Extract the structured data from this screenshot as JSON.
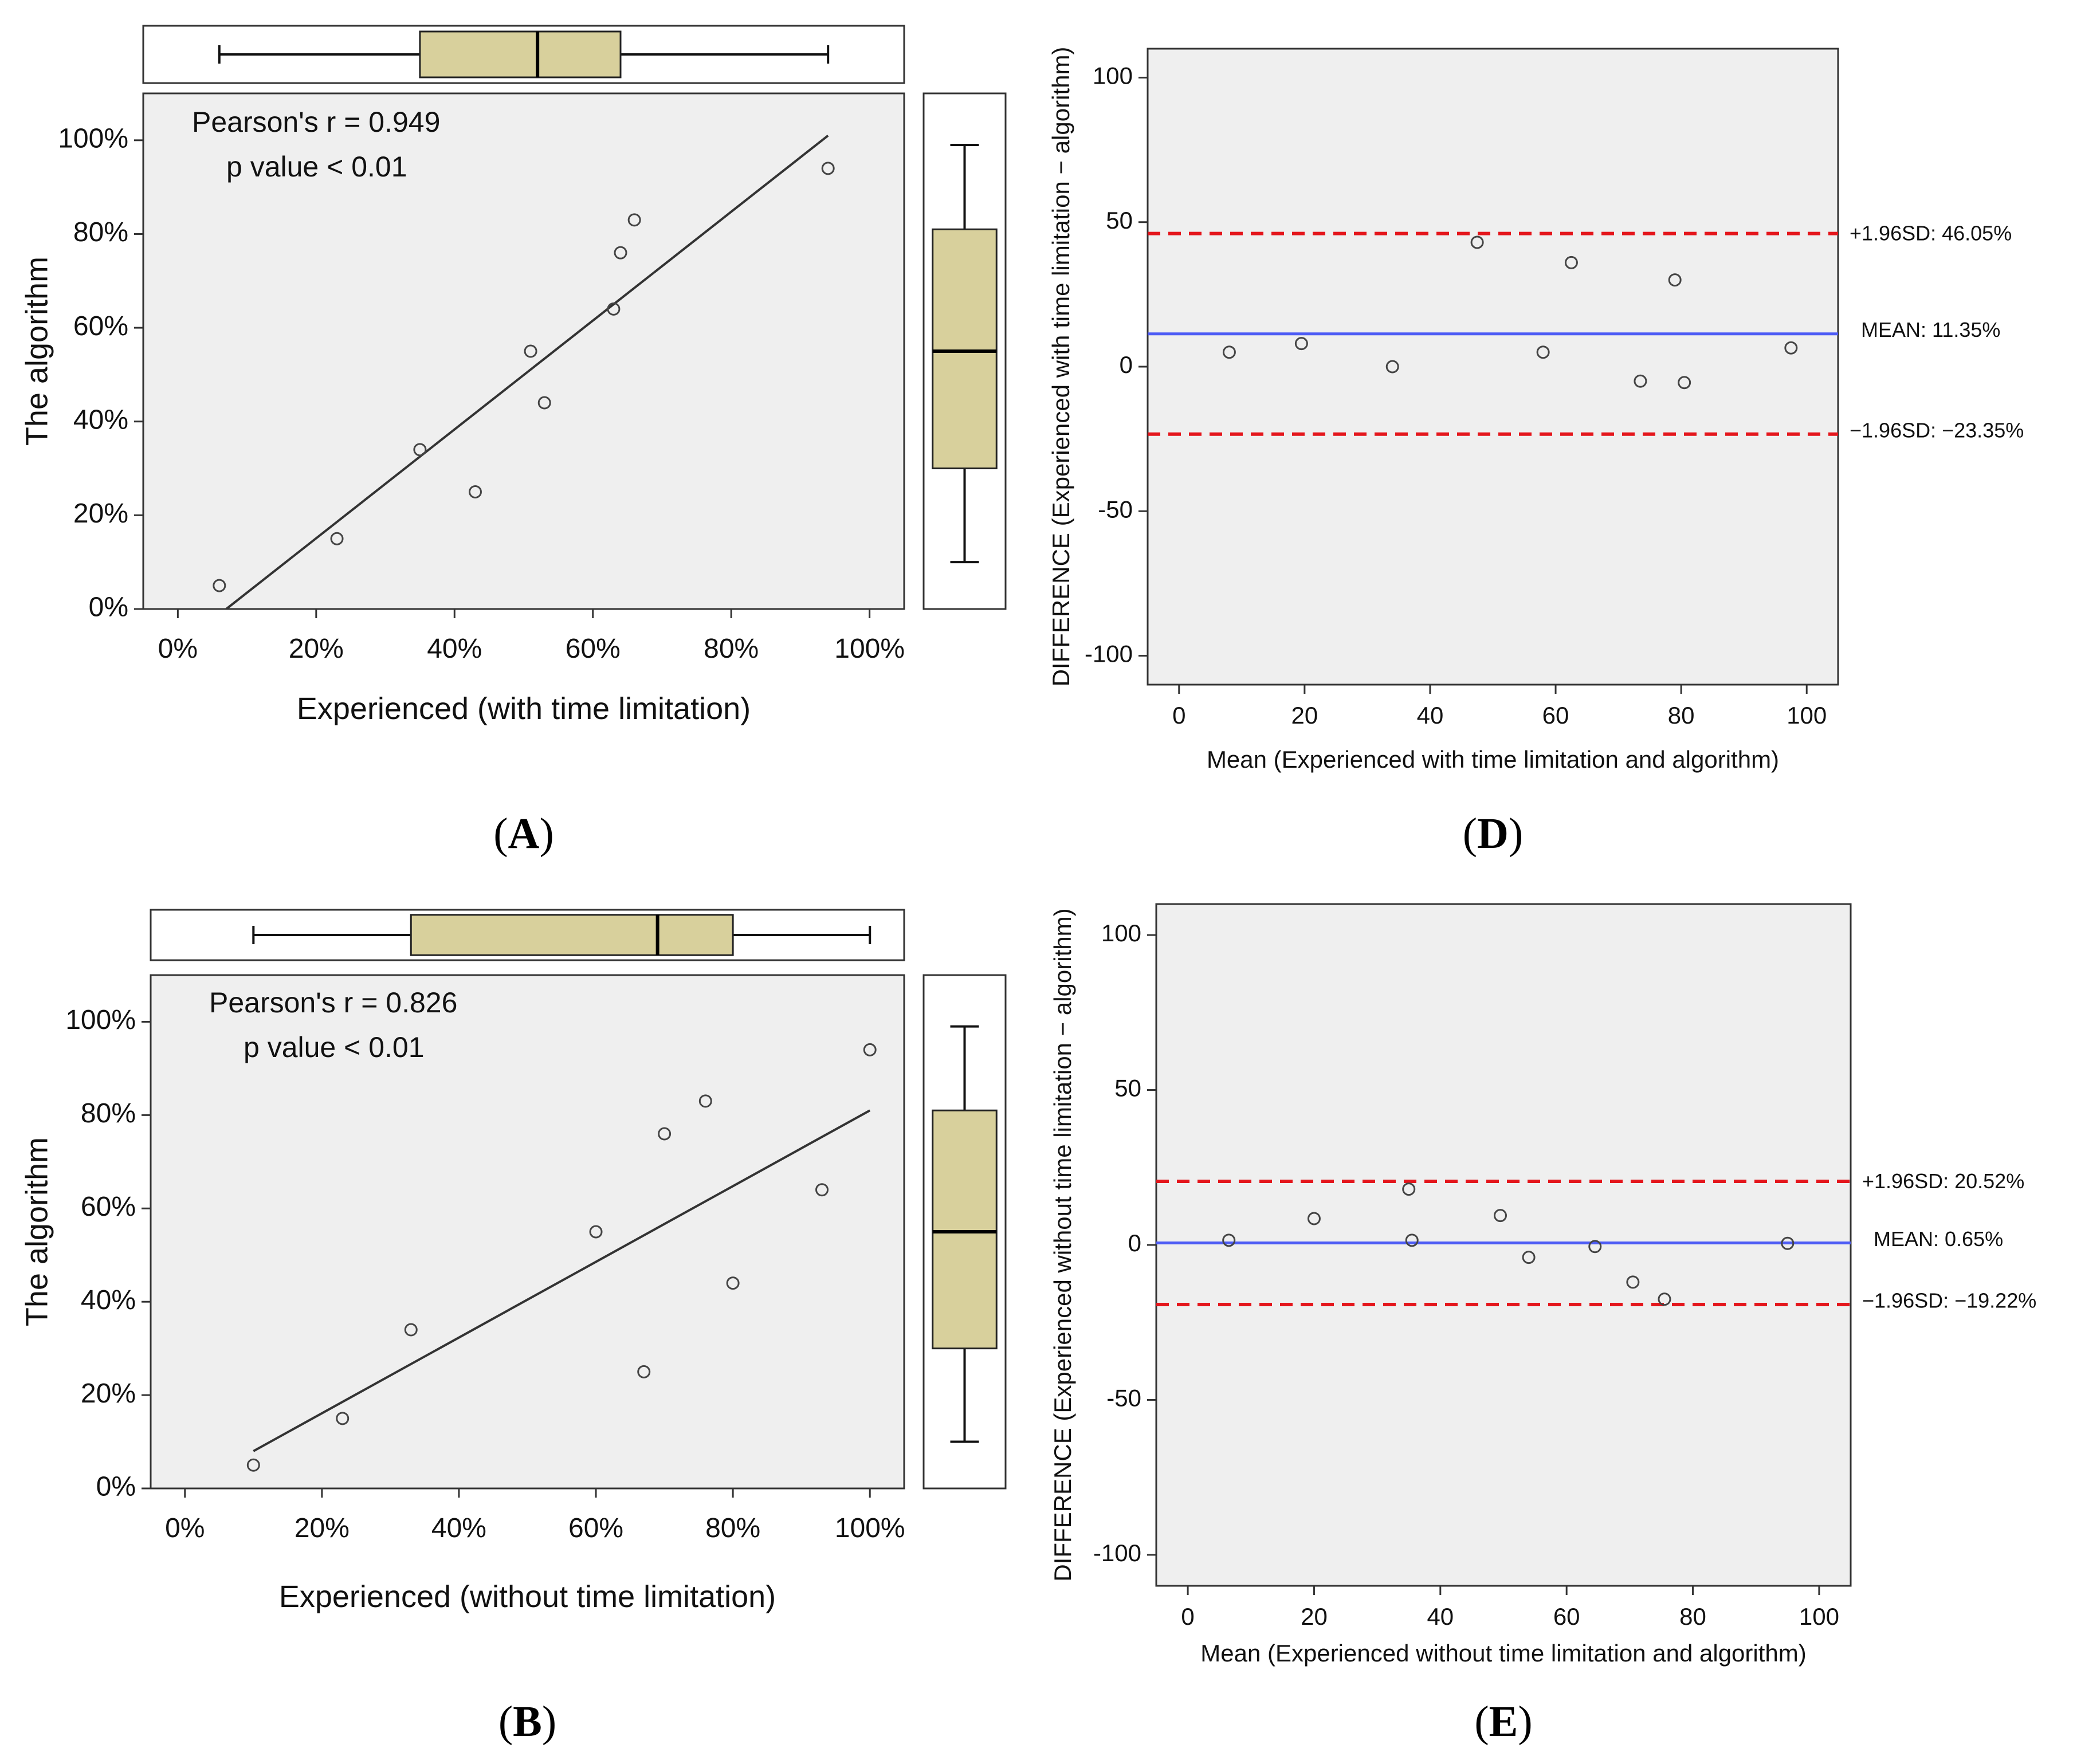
{
  "figure": {
    "colors": {
      "plot_bg": "#efefef",
      "box_fill": "#d8d09c",
      "mean_line": "#4d5cf5",
      "limit_line": "#e4161c",
      "axis": "#333333",
      "fit_line": "#333333"
    }
  },
  "chart_data": [
    {
      "panel": "A",
      "panel_label": "A",
      "type": "scatter",
      "annotation": {
        "pearson": "Pearson's r = 0.949",
        "pvalue": "p value < 0.01"
      },
      "xlabel": "Experienced (with time limitation)",
      "ylabel": "The algorithm",
      "xlim": [
        -0.05,
        1.05
      ],
      "ylim": [
        0,
        1.1
      ],
      "x_ticks": [
        "0%",
        "20%",
        "40%",
        "60%",
        "80%",
        "100%"
      ],
      "y_ticks": [
        "0%",
        "20%",
        "40%",
        "60%",
        "80%",
        "100%"
      ],
      "points": [
        {
          "x": 0.06,
          "y": 0.05
        },
        {
          "x": 0.23,
          "y": 0.15
        },
        {
          "x": 0.35,
          "y": 0.34
        },
        {
          "x": 0.43,
          "y": 0.25
        },
        {
          "x": 0.51,
          "y": 0.55
        },
        {
          "x": 0.53,
          "y": 0.44
        },
        {
          "x": 0.63,
          "y": 0.64
        },
        {
          "x": 0.64,
          "y": 0.76
        },
        {
          "x": 0.66,
          "y": 0.83
        },
        {
          "x": 0.94,
          "y": 0.94
        }
      ],
      "fit_line": {
        "x0": 0.07,
        "y0": 0.0,
        "x1": 0.94,
        "y1": 1.01
      },
      "boxplot_x": {
        "min": 0.06,
        "q1": 0.35,
        "median": 0.52,
        "q3": 0.64,
        "max": 0.94
      },
      "boxplot_y": {
        "min": 0.1,
        "q1": 0.3,
        "median": 0.55,
        "q3": 0.81,
        "max": 0.99
      }
    },
    {
      "panel": "B",
      "panel_label": "B",
      "type": "scatter",
      "annotation": {
        "pearson": "Pearson's r = 0.826",
        "pvalue": "p value < 0.01"
      },
      "xlabel": "Experienced (without time limitation)",
      "ylabel": "The algorithm",
      "xlim": [
        -0.05,
        1.05
      ],
      "ylim": [
        0,
        1.1
      ],
      "x_ticks": [
        "0%",
        "20%",
        "40%",
        "60%",
        "80%",
        "100%"
      ],
      "y_ticks": [
        "0%",
        "20%",
        "40%",
        "60%",
        "80%",
        "100%"
      ],
      "points": [
        {
          "x": 0.1,
          "y": 0.05
        },
        {
          "x": 0.23,
          "y": 0.15
        },
        {
          "x": 0.33,
          "y": 0.34
        },
        {
          "x": 0.6,
          "y": 0.55
        },
        {
          "x": 0.67,
          "y": 0.25
        },
        {
          "x": 0.7,
          "y": 0.76
        },
        {
          "x": 0.76,
          "y": 0.83
        },
        {
          "x": 0.8,
          "y": 0.44
        },
        {
          "x": 0.93,
          "y": 0.64
        },
        {
          "x": 1.0,
          "y": 0.94
        }
      ],
      "fit_line": {
        "x0": 0.1,
        "y0": 0.08,
        "x1": 1.0,
        "y1": 0.81
      },
      "boxplot_x": {
        "min": 0.1,
        "q1": 0.33,
        "median": 0.69,
        "q3": 0.8,
        "max": 1.0
      },
      "boxplot_y": {
        "min": 0.1,
        "q1": 0.3,
        "median": 0.55,
        "q3": 0.81,
        "max": 0.99
      }
    },
    {
      "panel": "D",
      "panel_label": "D",
      "type": "scatter",
      "subtype": "bland-altman",
      "xlabel": "Mean (Experienced with time limitation and algorithm)",
      "ylabel": "DIFFERENCE (Experienced with time limitation − algorithm)",
      "xlim": [
        -5,
        105
      ],
      "ylim": [
        -110,
        110
      ],
      "x_ticks": [
        0,
        20,
        40,
        60,
        80,
        100
      ],
      "y_ticks": [
        -100,
        -50,
        0,
        50,
        100
      ],
      "mean_value": 11.35,
      "upper_limit": 46.05,
      "lower_limit": -23.35,
      "mean_label": "MEAN: 11.35%",
      "upper_label": "+1.96SD: 46.05%",
      "lower_label": "−1.96SD: −23.35%",
      "points": [
        {
          "x": 8,
          "y": 5
        },
        {
          "x": 19.5,
          "y": 8
        },
        {
          "x": 34,
          "y": 0
        },
        {
          "x": 47.5,
          "y": 43
        },
        {
          "x": 58,
          "y": 5
        },
        {
          "x": 62.5,
          "y": 36
        },
        {
          "x": 73.5,
          "y": -5
        },
        {
          "x": 79,
          "y": 30
        },
        {
          "x": 80.5,
          "y": -5.5
        },
        {
          "x": 97.5,
          "y": 6.5
        }
      ]
    },
    {
      "panel": "E",
      "panel_label": "E",
      "type": "scatter",
      "subtype": "bland-altman",
      "xlabel": "Mean (Experienced without time limitation and algorithm)",
      "ylabel": "DIFFERENCE (Experienced without time limitation − algorithm)",
      "xlim": [
        -5,
        105
      ],
      "ylim": [
        -110,
        110
      ],
      "x_ticks": [
        0,
        20,
        40,
        60,
        80,
        100
      ],
      "y_ticks": [
        -100,
        -50,
        0,
        50,
        100
      ],
      "mean_value": 0.65,
      "upper_limit": 20.52,
      "lower_limit": -19.22,
      "mean_label": "MEAN: 0.65%",
      "upper_label": "+1.96SD: 20.52%",
      "lower_label": "−1.96SD: −19.22%",
      "points": [
        {
          "x": 6.5,
          "y": 1.5
        },
        {
          "x": 20,
          "y": 8.5
        },
        {
          "x": 35,
          "y": 18
        },
        {
          "x": 35.5,
          "y": 1.5
        },
        {
          "x": 49.5,
          "y": 9.5
        },
        {
          "x": 54,
          "y": -4
        },
        {
          "x": 64.5,
          "y": -0.5
        },
        {
          "x": 70.5,
          "y": -12
        },
        {
          "x": 75.5,
          "y": -17.5
        },
        {
          "x": 95,
          "y": 0.5
        }
      ]
    }
  ]
}
